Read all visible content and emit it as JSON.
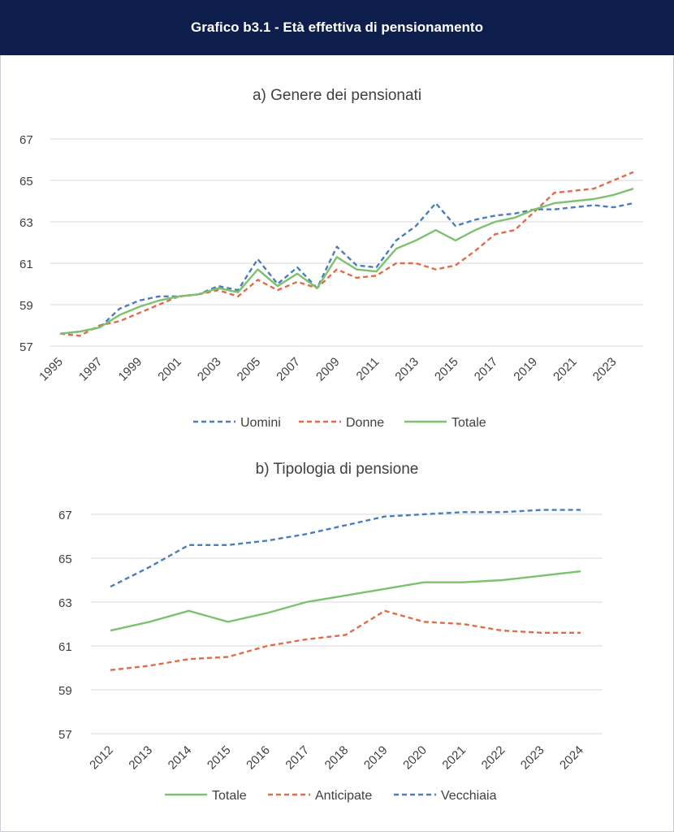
{
  "header": {
    "title": "Grafico b3.1 - Età effettiva di pensionamento"
  },
  "chart_data": [
    {
      "type": "line",
      "title": "a) Genere dei pensionati",
      "xlabel": "",
      "ylabel": "",
      "ylim": [
        57,
        67
      ],
      "yticks": [
        57,
        59,
        61,
        63,
        65,
        67
      ],
      "x": [
        1995,
        1996,
        1997,
        1998,
        1999,
        2000,
        2001,
        2002,
        2003,
        2004,
        2005,
        2006,
        2007,
        2008,
        2009,
        2010,
        2011,
        2012,
        2013,
        2014,
        2015,
        2016,
        2017,
        2018,
        2019,
        2020,
        2021,
        2022,
        2023,
        2024
      ],
      "x_tick_labels": [
        "1995",
        "1997",
        "1999",
        "2001",
        "2003",
        "2005",
        "2007",
        "2009",
        "2011",
        "2013",
        "2015",
        "2017",
        "2019",
        "2021",
        "2023"
      ],
      "grid": true,
      "legend_position": "bottom",
      "series": [
        {
          "name": "Uomini",
          "color": "#4a7ebb",
          "dash": "dashed",
          "values": [
            57.6,
            57.7,
            57.9,
            58.8,
            59.2,
            59.4,
            59.4,
            59.5,
            59.9,
            59.7,
            61.2,
            60.0,
            60.8,
            59.8,
            61.8,
            60.9,
            60.8,
            62.1,
            62.8,
            63.9,
            62.8,
            63.1,
            63.3,
            63.4,
            63.6,
            63.6,
            63.7,
            63.8,
            63.7,
            63.9
          ]
        },
        {
          "name": "Donne",
          "color": "#e06c4a",
          "dash": "dashed",
          "values": [
            57.6,
            57.5,
            58.0,
            58.2,
            58.6,
            59.0,
            59.4,
            59.5,
            59.7,
            59.4,
            60.2,
            59.7,
            60.1,
            59.8,
            60.7,
            60.3,
            60.4,
            61.0,
            61.0,
            60.7,
            60.9,
            61.6,
            62.4,
            62.6,
            63.5,
            64.4,
            64.5,
            64.6,
            65.0,
            65.4
          ]
        },
        {
          "name": "Totale",
          "color": "#7cc26e",
          "dash": "solid",
          "values": [
            57.6,
            57.7,
            57.9,
            58.5,
            58.9,
            59.2,
            59.4,
            59.5,
            59.8,
            59.6,
            60.7,
            59.9,
            60.5,
            59.8,
            61.3,
            60.7,
            60.6,
            61.7,
            62.1,
            62.6,
            62.1,
            62.6,
            63.0,
            63.2,
            63.6,
            63.9,
            64.0,
            64.1,
            64.3,
            64.6
          ]
        }
      ]
    },
    {
      "type": "line",
      "title": "b) Tipologia di pensione",
      "xlabel": "",
      "ylabel": "",
      "ylim": [
        57,
        67
      ],
      "yticks": [
        57,
        59,
        61,
        63,
        65,
        67
      ],
      "x": [
        2012,
        2013,
        2014,
        2015,
        2016,
        2017,
        2018,
        2019,
        2020,
        2021,
        2022,
        2023,
        2024
      ],
      "x_tick_labels": [
        "2012",
        "2013",
        "2014",
        "2015",
        "2016",
        "2017",
        "2018",
        "2019",
        "2020",
        "2021",
        "2022",
        "2023",
        "2024"
      ],
      "grid": true,
      "legend_position": "bottom",
      "series": [
        {
          "name": "Totale",
          "color": "#7cc26e",
          "dash": "solid",
          "values": [
            61.7,
            62.1,
            62.6,
            62.1,
            62.5,
            63.0,
            63.3,
            63.6,
            63.9,
            63.9,
            64.0,
            64.2,
            64.4
          ]
        },
        {
          "name": "Anticipate",
          "color": "#e06c4a",
          "dash": "dashed",
          "values": [
            59.9,
            60.1,
            60.4,
            60.5,
            61.0,
            61.3,
            61.5,
            62.6,
            62.1,
            62.0,
            61.7,
            61.6,
            61.6
          ]
        },
        {
          "name": "Vecchiaia",
          "color": "#4a7ebb",
          "dash": "dashed",
          "values": [
            63.7,
            64.6,
            65.6,
            65.6,
            65.8,
            66.1,
            66.5,
            66.9,
            67.0,
            67.1,
            67.1,
            67.2,
            67.2
          ]
        }
      ]
    }
  ]
}
